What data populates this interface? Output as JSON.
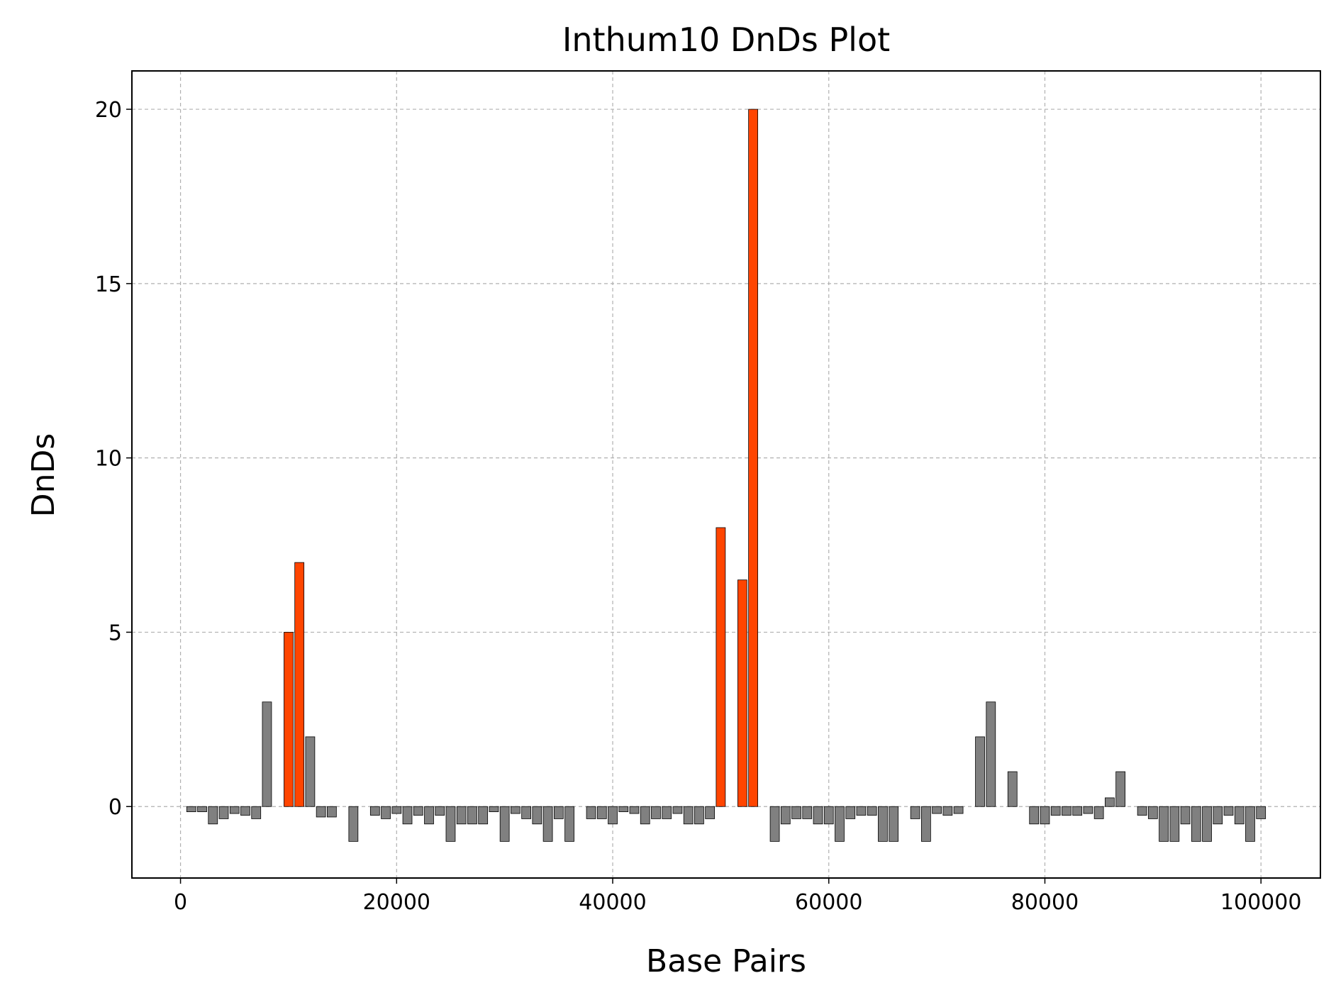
{
  "chart_data": {
    "type": "bar",
    "title": "Inthum10 DnDs Plot",
    "xlabel": "Base Pairs",
    "ylabel": "DnDs",
    "xlim": [
      -4500,
      105500
    ],
    "ylim": [
      -2.05,
      21.1
    ],
    "xticks": [
      0,
      20000,
      40000,
      60000,
      80000,
      100000
    ],
    "xtick_labels": [
      "0",
      "20000",
      "40000",
      "60000",
      "80000",
      "100000"
    ],
    "yticks": [
      0,
      5,
      10,
      15,
      20
    ],
    "ytick_labels": [
      "0",
      "5",
      "10",
      "15",
      "20"
    ],
    "grid": true,
    "bar_width": 850,
    "colors": {
      "normal": "#808080",
      "highlight": "#ff4500"
    },
    "highlight_threshold": 4,
    "x": [
      1000,
      2000,
      3000,
      4000,
      5000,
      6000,
      7000,
      8000,
      9000,
      10000,
      11000,
      12000,
      13000,
      14000,
      15000,
      16000,
      17000,
      18000,
      19000,
      20000,
      21000,
      22000,
      23000,
      24000,
      25000,
      26000,
      27000,
      28000,
      29000,
      30000,
      31000,
      32000,
      33000,
      34000,
      35000,
      36000,
      37000,
      38000,
      39000,
      40000,
      41000,
      42000,
      43000,
      44000,
      45000,
      46000,
      47000,
      48000,
      49000,
      50000,
      51000,
      52000,
      53000,
      54000,
      55000,
      56000,
      57000,
      58000,
      59000,
      60000,
      61000,
      62000,
      63000,
      64000,
      65000,
      66000,
      67000,
      68000,
      69000,
      70000,
      71000,
      72000,
      73000,
      74000,
      75000,
      76000,
      77000,
      78000,
      79000,
      80000,
      81000,
      82000,
      83000,
      84000,
      85000,
      86000,
      87000,
      88000,
      89000,
      90000,
      91000,
      92000,
      93000,
      94000,
      95000,
      96000,
      97000,
      98000,
      99000,
      100000
    ],
    "values": [
      -0.15,
      -0.15,
      -0.5,
      -0.35,
      -0.2,
      -0.25,
      -0.35,
      3,
      0,
      5,
      7,
      2,
      -0.3,
      -0.3,
      0,
      -1,
      0,
      -0.25,
      -0.35,
      -0.2,
      -0.5,
      -0.25,
      -0.5,
      -0.25,
      -1,
      -0.5,
      -0.5,
      -0.5,
      -0.15,
      -1,
      -0.2,
      -0.35,
      -0.5,
      -1,
      -0.35,
      -1,
      0,
      -0.35,
      -0.35,
      -0.5,
      -0.15,
      -0.2,
      -0.5,
      -0.35,
      -0.35,
      -0.2,
      -0.5,
      -0.5,
      -0.35,
      8,
      0,
      6.5,
      20,
      0,
      -1,
      -0.5,
      -0.35,
      -0.35,
      -0.5,
      -0.5,
      -1,
      -0.35,
      -0.25,
      -0.25,
      -1,
      -1,
      0,
      -0.35,
      -1,
      -0.2,
      -0.25,
      -0.2,
      0,
      2,
      3,
      0,
      1,
      0,
      -0.5,
      -0.5,
      -0.25,
      -0.25,
      -0.25,
      -0.2,
      -0.35,
      0.25,
      1,
      0,
      -0.25,
      -0.35,
      -1,
      -1,
      -0.5,
      -1,
      -1,
      -0.5,
      -0.25,
      -0.5,
      -1,
      -0.35
    ]
  }
}
